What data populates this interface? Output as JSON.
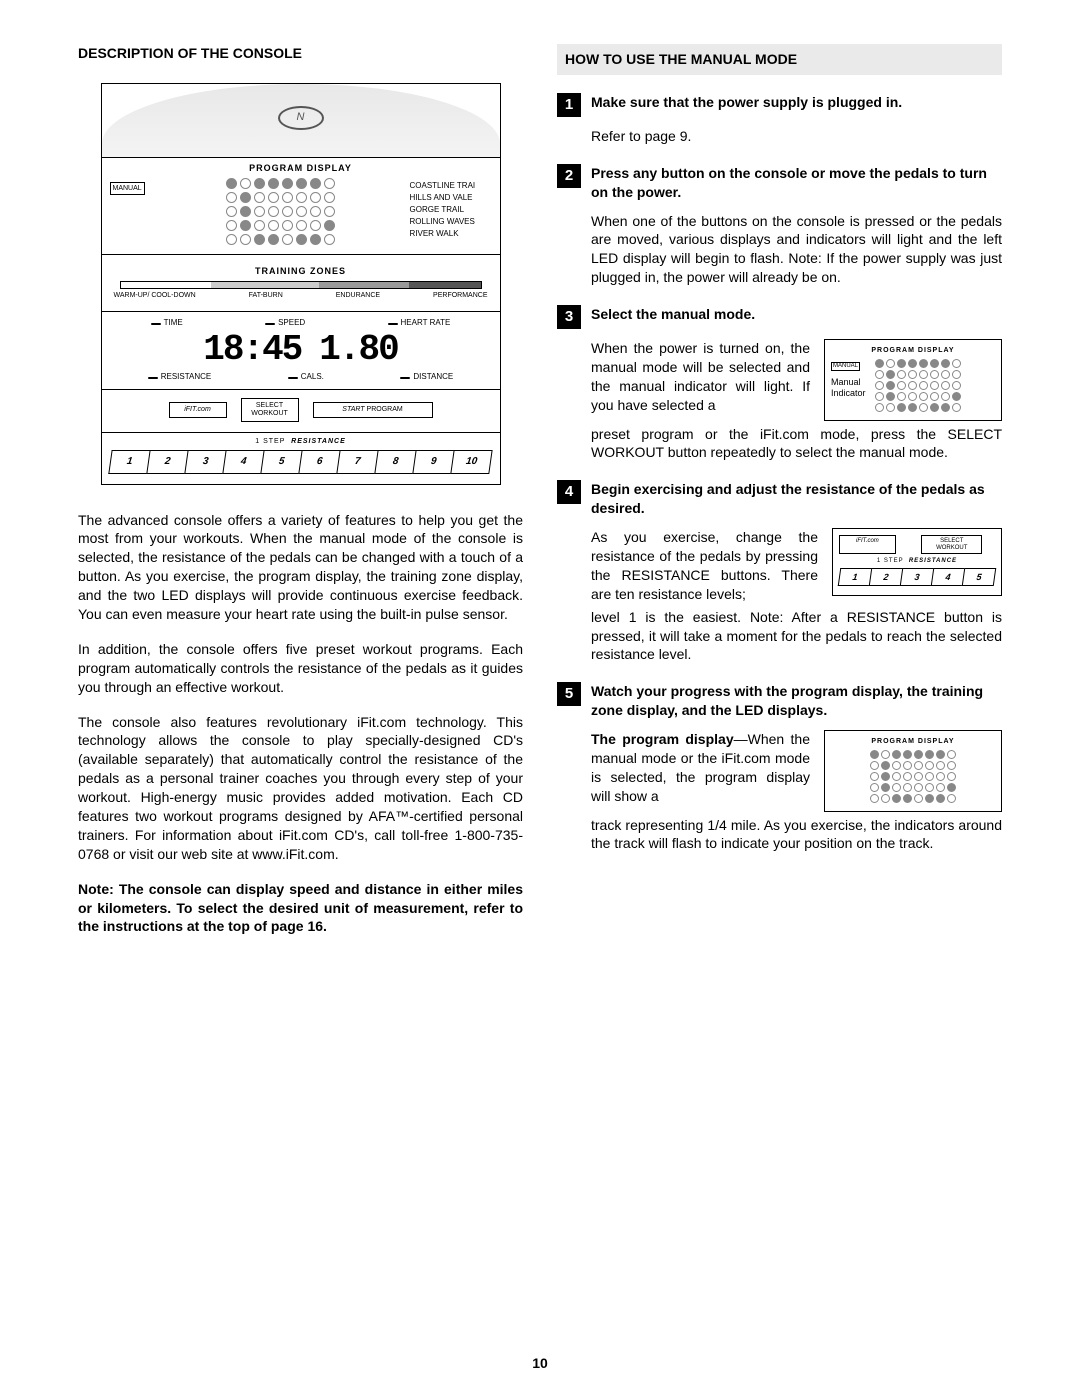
{
  "page_number": "10",
  "left": {
    "heading": "DESCRIPTION OF THE CONSOLE",
    "paras": [
      "The advanced console offers a variety of features to help you get the most from your workouts. When the manual mode of the console is selected, the resistance of the pedals can be changed with a touch of a button. As you exercise, the program display, the training zone display, and the two LED displays will provide continuous exercise feedback. You can even measure your heart rate using the built-in pulse sensor.",
      "In addition, the console offers five preset workout programs. Each program automatically controls the resistance of the pedals as it guides you through an effective workout.",
      "The console also features revolutionary iFit.com technology. This technology allows the console to play specially-designed CD's (available separately) that automatically control the resistance of the pedals as a personal trainer coaches you through every step of your workout. High-energy music provides added motivation. Each CD features two workout programs designed by AFA™-certified personal trainers. For information about iFit.com CD's, call toll-free 1-800-735-0768 or visit our web site at www.iFit.com."
    ],
    "note": "Note: The console can display speed and distance in either miles or kilometers. To select the desired unit of measurement, refer to the instructions at the top of page 16."
  },
  "right": {
    "heading": "HOW TO USE THE MANUAL MODE",
    "steps": [
      {
        "n": "1",
        "title": "Make sure that the power supply is plugged in.",
        "body": [
          "Refer to page 9."
        ]
      },
      {
        "n": "2",
        "title": "Press any button on the console or move the pedals to turn on the power.",
        "body": [
          "When one of the buttons on the console is pressed or the pedals are moved, various displays and indicators will light and the left LED display will begin to flash. Note: If the power supply was just plugged in, the power will already be on."
        ]
      },
      {
        "n": "3",
        "title": "Select the manual mode.",
        "body_split": {
          "left": "When the power is turned on, the manual mode will be selected and the manual indicator will light. If you have selected a",
          "after": "preset program or the iFit.com mode, press the SELECT WORKOUT button repeatedly to select the manual mode."
        },
        "mini": "program"
      },
      {
        "n": "4",
        "title": "Begin exercising and adjust the resistance of the pedals as desired.",
        "body_split": {
          "left": "As you exercise, change the resistance of the pedals by pressing the RESISTANCE buttons. There are ten resistance levels;",
          "after": "level 1 is the easiest. Note: After a RESISTANCE button is pressed, it will take a moment for the pedals to reach the selected resistance level."
        },
        "mini": "resistance"
      },
      {
        "n": "5",
        "title": "Watch your progress with the program display, the training zone display, and the LED displays.",
        "body_split": {
          "left_html": "<b>The program display</b>—When the manual mode or the iFit.com mode is selected, the program display will show a",
          "after": "track representing 1/4 mile. As you exercise, the indicators around the track will flash to indicate your position on the track."
        },
        "mini": "track"
      }
    ]
  },
  "console": {
    "program_display_label": "PROGRAM DISPLAY",
    "manual_label": "MANUAL",
    "right_labels": [
      "COASTLINE TRAI",
      "HILLS AND VALE",
      "GORGE TRAIL",
      "ROLLING WAVES",
      "RIVER WALK"
    ],
    "dot_rows": [
      [
        1,
        0,
        1,
        1,
        1,
        1,
        1,
        0
      ],
      [
        0,
        1,
        0,
        0,
        0,
        0,
        0,
        0
      ],
      [
        0,
        1,
        0,
        0,
        0,
        0,
        0,
        0
      ],
      [
        0,
        1,
        0,
        0,
        0,
        0,
        0,
        1
      ],
      [
        0,
        0,
        1,
        1,
        0,
        1,
        1,
        0
      ]
    ],
    "tz_label": "TRAINING ZONES",
    "tz_items": [
      "WARM-UP/ COOL-DOWN",
      "FAT-BURN",
      "ENDURANCE",
      "PERFORMANCE"
    ],
    "meters_top": [
      "TIME",
      "SPEED",
      "HEART RATE"
    ],
    "seg_left": "18:45",
    "seg_right": "1.80",
    "meters_bot": [
      "RESISTANCE",
      "CALS.",
      "DISTANCE"
    ],
    "btn_ifit": "iFIT.com",
    "btn_select": "SELECT WORKOUT",
    "btn_start": "START PROGRAM",
    "res_label": "1 STEP  RESISTANCE",
    "res_nums": [
      "1",
      "2",
      "3",
      "4",
      "5",
      "6",
      "7",
      "8",
      "9",
      "10"
    ]
  },
  "mini_program": {
    "label": "PROGRAM DISPLAY",
    "manual": "MANUAL",
    "side": "Manual Indicator"
  },
  "mini_res": {
    "ifit": "iFIT.com",
    "sel": "SELECT WORKOUT",
    "label": "1 STEP  RESISTANCE",
    "nums": [
      "1",
      "2",
      "3",
      "4",
      "5"
    ]
  },
  "mini_track": {
    "label": "PROGRAM DISPLAY"
  }
}
